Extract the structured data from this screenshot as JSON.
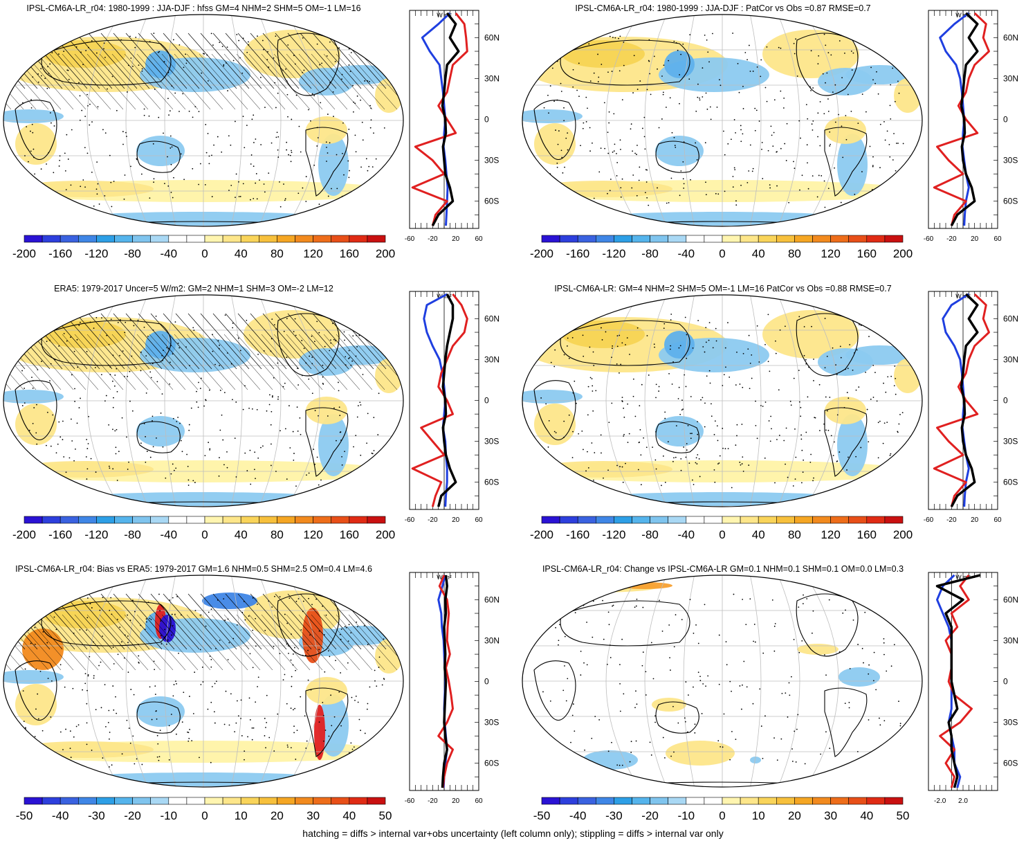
{
  "footnote": "hatching = diffs > internal var+obs uncertainty (left column only); stippling = diffs > internal var only",
  "colors": {
    "deep_blue": "#2a1fd6",
    "mid_blue": "#3d78d8",
    "light_blue": "#62b6e8",
    "pale_blue": "#8ccaf0",
    "pale_yellow": "#fff3a6",
    "yellow": "#f7d454",
    "orange": "#f2a02a",
    "red": "#e02020",
    "land_outline": "#000000",
    "grid": "#bdbdbd"
  },
  "panels": [
    {
      "title": "IPSL-CM6A-LR_r04: 1980-1999 : JJA-DJF : hfss GM=4 NHM=2 SHM=5 OM=-1 LM=16",
      "colorbar_labels": [
        "-200",
        "-160",
        "-120",
        "-80",
        "-40",
        "0",
        "40",
        "80",
        "120",
        "160",
        "200"
      ],
      "profile_unit": "W m²",
      "profile_lat_labels": [
        "60N",
        "30N",
        "0",
        "30S",
        "60S"
      ],
      "profile_x_labels": [
        "-60",
        "-20",
        "20",
        "60"
      ],
      "hatching": true
    },
    {
      "title": "IPSL-CM6A-LR_r04: 1980-1999 : JJA-DJF : PatCor vs Obs =0.87 RMSE=0.7",
      "colorbar_labels": [
        "-200",
        "-160",
        "-120",
        "-80",
        "-40",
        "0",
        "40",
        "80",
        "120",
        "160",
        "200"
      ],
      "profile_unit": "W m²",
      "profile_lat_labels": [
        "60N",
        "30N",
        "0",
        "30S",
        "60S"
      ],
      "profile_x_labels": [
        "-60",
        "-20",
        "20",
        "60"
      ],
      "hatching": false
    },
    {
      "title": "ERA5: 1979-2017 Uncer=5 W/m2: GM=2 NHM=1 SHM=3 OM=-2 LM=12",
      "colorbar_labels": [
        "-200",
        "-160",
        "-120",
        "-80",
        "-40",
        "0",
        "40",
        "80",
        "120",
        "160",
        "200"
      ],
      "profile_unit": "W m²",
      "profile_lat_labels": [
        "60N",
        "30N",
        "0",
        "30S",
        "60S"
      ],
      "profile_x_labels": [
        "-60",
        "-20",
        "20",
        "60"
      ],
      "hatching": true
    },
    {
      "title": "IPSL-CM6A-LR: GM=4 NHM=2 SHM=5 OM=-1 LM=16 PatCor vs Obs =0.88 RMSE=0.7",
      "colorbar_labels": [
        "-200",
        "-160",
        "-120",
        "-80",
        "-40",
        "0",
        "40",
        "80",
        "120",
        "160",
        "200"
      ],
      "profile_unit": "W m²",
      "profile_lat_labels": [
        "60N",
        "30N",
        "0",
        "30S",
        "60S"
      ],
      "profile_x_labels": [
        "-60",
        "-20",
        "20",
        "60"
      ],
      "hatching": false
    },
    {
      "title": "IPSL-CM6A-LR_r04: Bias vs ERA5: 1979-2017 GM=1.6 NHM=0.5 SHM=2.5 OM=0.4 LM=4.6",
      "colorbar_labels": [
        "-50",
        "-40",
        "-30",
        "-20",
        "-10",
        "0",
        "10",
        "20",
        "30",
        "40",
        "50"
      ],
      "profile_unit": "W m²",
      "profile_lat_labels": [
        "60N",
        "30N",
        "0",
        "30S",
        "60S"
      ],
      "profile_x_labels": [
        "-60",
        "-20",
        "20",
        "60"
      ],
      "hatching": true
    },
    {
      "title": "IPSL-CM6A-LR_r04: Change vs IPSL-CM6A-LR GM=0.1 NHM=0.1 SHM=0.1 OM=0.0 LM=0.3",
      "colorbar_labels": [
        "-50",
        "-40",
        "-30",
        "-20",
        "-10",
        "0",
        "10",
        "20",
        "30",
        "40",
        "50"
      ],
      "profile_unit": "W m²",
      "profile_lat_labels": [
        "60N",
        "30N",
        "0",
        "30S",
        "60S"
      ],
      "profile_x_labels": [
        "-2.0",
        "2.0"
      ],
      "hatching": false
    }
  ],
  "chart_data": {
    "type": "heatmap",
    "description_units": "W m-2",
    "colorbar_colors": [
      "#2a12d4",
      "#2d3fdd",
      "#3a62e0",
      "#3f86e6",
      "#2d9fe6",
      "#55b4ec",
      "#7fc4ee",
      "#a9d8f4",
      "#ffffff",
      "#ffffff",
      "#fff5b0",
      "#fde68a",
      "#f9d45a",
      "#f7c03c",
      "#f5a623",
      "#f28a1e",
      "#ee6d1a",
      "#e84f18",
      "#e02b14",
      "#c91010"
    ],
    "profiles": [
      {
        "name": "panel-1",
        "xlim": [
          -60,
          60
        ],
        "series": [
          {
            "name": "ocean",
            "color": "#1f3fe0",
            "lat": [
              78,
              70,
              60,
              50,
              40,
              30,
              20,
              10,
              0,
              -10,
              -20,
              -30,
              -40,
              -50,
              -60,
              -70,
              -78
            ],
            "values": [
              10,
              -10,
              -38,
              -25,
              -8,
              -5,
              -2,
              0,
              2,
              0,
              -1,
              2,
              4,
              6,
              5,
              4,
              3
            ]
          },
          {
            "name": "land",
            "color": "#e02020",
            "lat": [
              78,
              70,
              60,
              50,
              40,
              30,
              20,
              10,
              0,
              -10,
              -20,
              -30,
              -40,
              -50,
              -60,
              -70,
              -78
            ],
            "values": [
              20,
              35,
              38,
              40,
              15,
              10,
              5,
              -10,
              5,
              20,
              -50,
              -20,
              0,
              -55,
              5,
              -15,
              -20
            ]
          },
          {
            "name": "zonal",
            "color": "#000000",
            "lat": [
              78,
              70,
              60,
              50,
              40,
              30,
              20,
              10,
              0,
              -10,
              -20,
              -30,
              -40,
              -50,
              -60,
              -70,
              -78
            ],
            "values": [
              5,
              20,
              10,
              25,
              5,
              2,
              0,
              -3,
              2,
              3,
              -2,
              0,
              2,
              10,
              15,
              -10,
              -20
            ]
          }
        ]
      },
      {
        "name": "panel-2",
        "xlim": [
          -60,
          60
        ],
        "series": [
          {
            "name": "ocean",
            "color": "#1f3fe0",
            "lat": [
              78,
              70,
              60,
              50,
              40,
              30,
              20,
              10,
              0,
              -10,
              -20,
              -30,
              -40,
              -50,
              -60,
              -70,
              -78
            ],
            "values": [
              10,
              -15,
              -40,
              -30,
              -12,
              -5,
              -2,
              0,
              2,
              0,
              -1,
              2,
              5,
              10,
              5,
              3,
              2
            ]
          },
          {
            "name": "land",
            "color": "#e02020",
            "lat": [
              78,
              70,
              60,
              50,
              40,
              30,
              20,
              10,
              0,
              -10,
              -20,
              -30,
              -40,
              -50,
              -60,
              -70,
              -78
            ],
            "values": [
              20,
              40,
              35,
              45,
              20,
              10,
              5,
              -8,
              5,
              25,
              -45,
              -25,
              0,
              -50,
              5,
              -15,
              -20
            ]
          },
          {
            "name": "zonal",
            "color": "#000000",
            "lat": [
              78,
              70,
              60,
              50,
              40,
              30,
              20,
              10,
              0,
              -10,
              -20,
              -30,
              -40,
              -50,
              -60,
              -70,
              -78
            ],
            "values": [
              5,
              25,
              10,
              25,
              5,
              2,
              0,
              -3,
              2,
              3,
              -2,
              0,
              5,
              15,
              20,
              -10,
              -20
            ]
          }
        ]
      },
      {
        "name": "panel-3",
        "xlim": [
          -60,
          60
        ],
        "series": [
          {
            "name": "ocean",
            "color": "#1f3fe0",
            "lat": [
              78,
              70,
              60,
              50,
              40,
              30,
              20,
              10,
              0,
              -10,
              -20,
              -30,
              -40,
              -50,
              -60,
              -70,
              -78
            ],
            "values": [
              5,
              -30,
              -35,
              -30,
              -20,
              -8,
              -3,
              0,
              2,
              0,
              -2,
              2,
              3,
              5,
              5,
              3,
              2
            ]
          },
          {
            "name": "land",
            "color": "#e02020",
            "lat": [
              78,
              70,
              60,
              50,
              40,
              30,
              20,
              10,
              0,
              -10,
              -20,
              -30,
              -40,
              -50,
              -60,
              -70,
              -78
            ],
            "values": [
              15,
              30,
              40,
              35,
              15,
              5,
              -5,
              -10,
              5,
              15,
              -40,
              -20,
              0,
              -55,
              -5,
              -15,
              -20
            ]
          },
          {
            "name": "zonal",
            "color": "#000000",
            "lat": [
              78,
              70,
              60,
              50,
              40,
              30,
              20,
              10,
              0,
              -10,
              -20,
              -30,
              -40,
              -50,
              -60,
              -70,
              -78
            ],
            "values": [
              5,
              15,
              15,
              10,
              5,
              2,
              0,
              -2,
              2,
              3,
              -2,
              0,
              3,
              10,
              20,
              -5,
              -10
            ]
          }
        ]
      },
      {
        "name": "panel-4",
        "xlim": [
          -60,
          60
        ],
        "series": [
          {
            "name": "ocean",
            "color": "#1f3fe0",
            "lat": [
              78,
              70,
              60,
              50,
              40,
              30,
              20,
              10,
              0,
              -10,
              -20,
              -30,
              -40,
              -50,
              -60,
              -70,
              -78
            ],
            "values": [
              10,
              -20,
              -35,
              -30,
              -15,
              -5,
              -2,
              0,
              2,
              0,
              -1,
              2,
              5,
              10,
              5,
              3,
              2
            ]
          },
          {
            "name": "land",
            "color": "#e02020",
            "lat": [
              78,
              70,
              60,
              50,
              40,
              30,
              20,
              10,
              0,
              -10,
              -20,
              -30,
              -40,
              -50,
              -60,
              -70,
              -78
            ],
            "values": [
              20,
              40,
              35,
              45,
              20,
              10,
              5,
              -8,
              5,
              25,
              -45,
              -25,
              0,
              -50,
              5,
              -15,
              -20
            ]
          },
          {
            "name": "zonal",
            "color": "#000000",
            "lat": [
              78,
              70,
              60,
              50,
              40,
              30,
              20,
              10,
              0,
              -10,
              -20,
              -30,
              -40,
              -50,
              -60,
              -70,
              -78
            ],
            "values": [
              5,
              25,
              10,
              25,
              5,
              2,
              0,
              -3,
              2,
              3,
              -2,
              0,
              5,
              15,
              20,
              -10,
              -20
            ]
          }
        ]
      },
      {
        "name": "panel-5",
        "xlim": [
          -60,
          60
        ],
        "series": [
          {
            "name": "ocean",
            "color": "#1f3fe0",
            "lat": [
              78,
              70,
              60,
              50,
              40,
              30,
              20,
              10,
              0,
              -10,
              -20,
              -30,
              -40,
              -50,
              -60,
              -70,
              -78
            ],
            "values": [
              2,
              -3,
              -10,
              -5,
              -4,
              -1,
              0,
              1,
              2,
              1,
              0,
              1,
              3,
              5,
              2,
              0,
              -1
            ]
          },
          {
            "name": "land",
            "color": "#e02020",
            "lat": [
              78,
              70,
              60,
              50,
              40,
              30,
              20,
              10,
              0,
              -10,
              -20,
              -30,
              -40,
              -50,
              -60,
              -70,
              -78
            ],
            "values": [
              0,
              -8,
              5,
              8,
              6,
              5,
              10,
              3,
              8,
              12,
              15,
              5,
              -10,
              15,
              5,
              0,
              -2
            ]
          },
          {
            "name": "zonal",
            "color": "#000000",
            "lat": [
              78,
              70,
              60,
              50,
              40,
              30,
              20,
              10,
              0,
              -10,
              -20,
              -30,
              -40,
              -50,
              -60,
              -70,
              -78
            ],
            "values": [
              3,
              5,
              2,
              3,
              0,
              1,
              2,
              1,
              3,
              2,
              1,
              0,
              2,
              5,
              0,
              -2,
              -3
            ]
          }
        ]
      },
      {
        "name": "panel-6",
        "xlim": [
          -4,
          8
        ],
        "series": [
          {
            "name": "ocean",
            "color": "#1f3fe0",
            "lat": [
              78,
              70,
              60,
              50,
              40,
              30,
              20,
              10,
              0,
              -10,
              -20,
              -30,
              -40,
              -50,
              -60,
              -70,
              -78
            ],
            "values": [
              0.5,
              -1.5,
              -2.5,
              -1.5,
              -0.5,
              0,
              0,
              0,
              0,
              0,
              0,
              -0.5,
              0,
              0.5,
              0.5,
              1.5,
              1.0
            ]
          },
          {
            "name": "land",
            "color": "#e02020",
            "lat": [
              78,
              70,
              60,
              50,
              40,
              30,
              20,
              10,
              0,
              -10,
              -20,
              -30,
              -40,
              -50,
              -60,
              -70,
              -78
            ],
            "values": [
              3,
              1.5,
              3,
              0,
              1,
              -1,
              0,
              0,
              -0.5,
              0.5,
              3.5,
              1.5,
              -2,
              0.5,
              -1,
              0.5,
              0
            ]
          },
          {
            "name": "zonal",
            "color": "#000000",
            "lat": [
              78,
              70,
              60,
              50,
              40,
              30,
              20,
              10,
              0,
              -10,
              -20,
              -30,
              -40,
              -50,
              -60,
              -70,
              -78
            ],
            "values": [
              5,
              -2.5,
              2,
              -1,
              0,
              0,
              0,
              0,
              0,
              0.5,
              1,
              -0.5,
              0,
              0,
              0.5,
              1,
              0.5
            ]
          }
        ]
      }
    ]
  }
}
